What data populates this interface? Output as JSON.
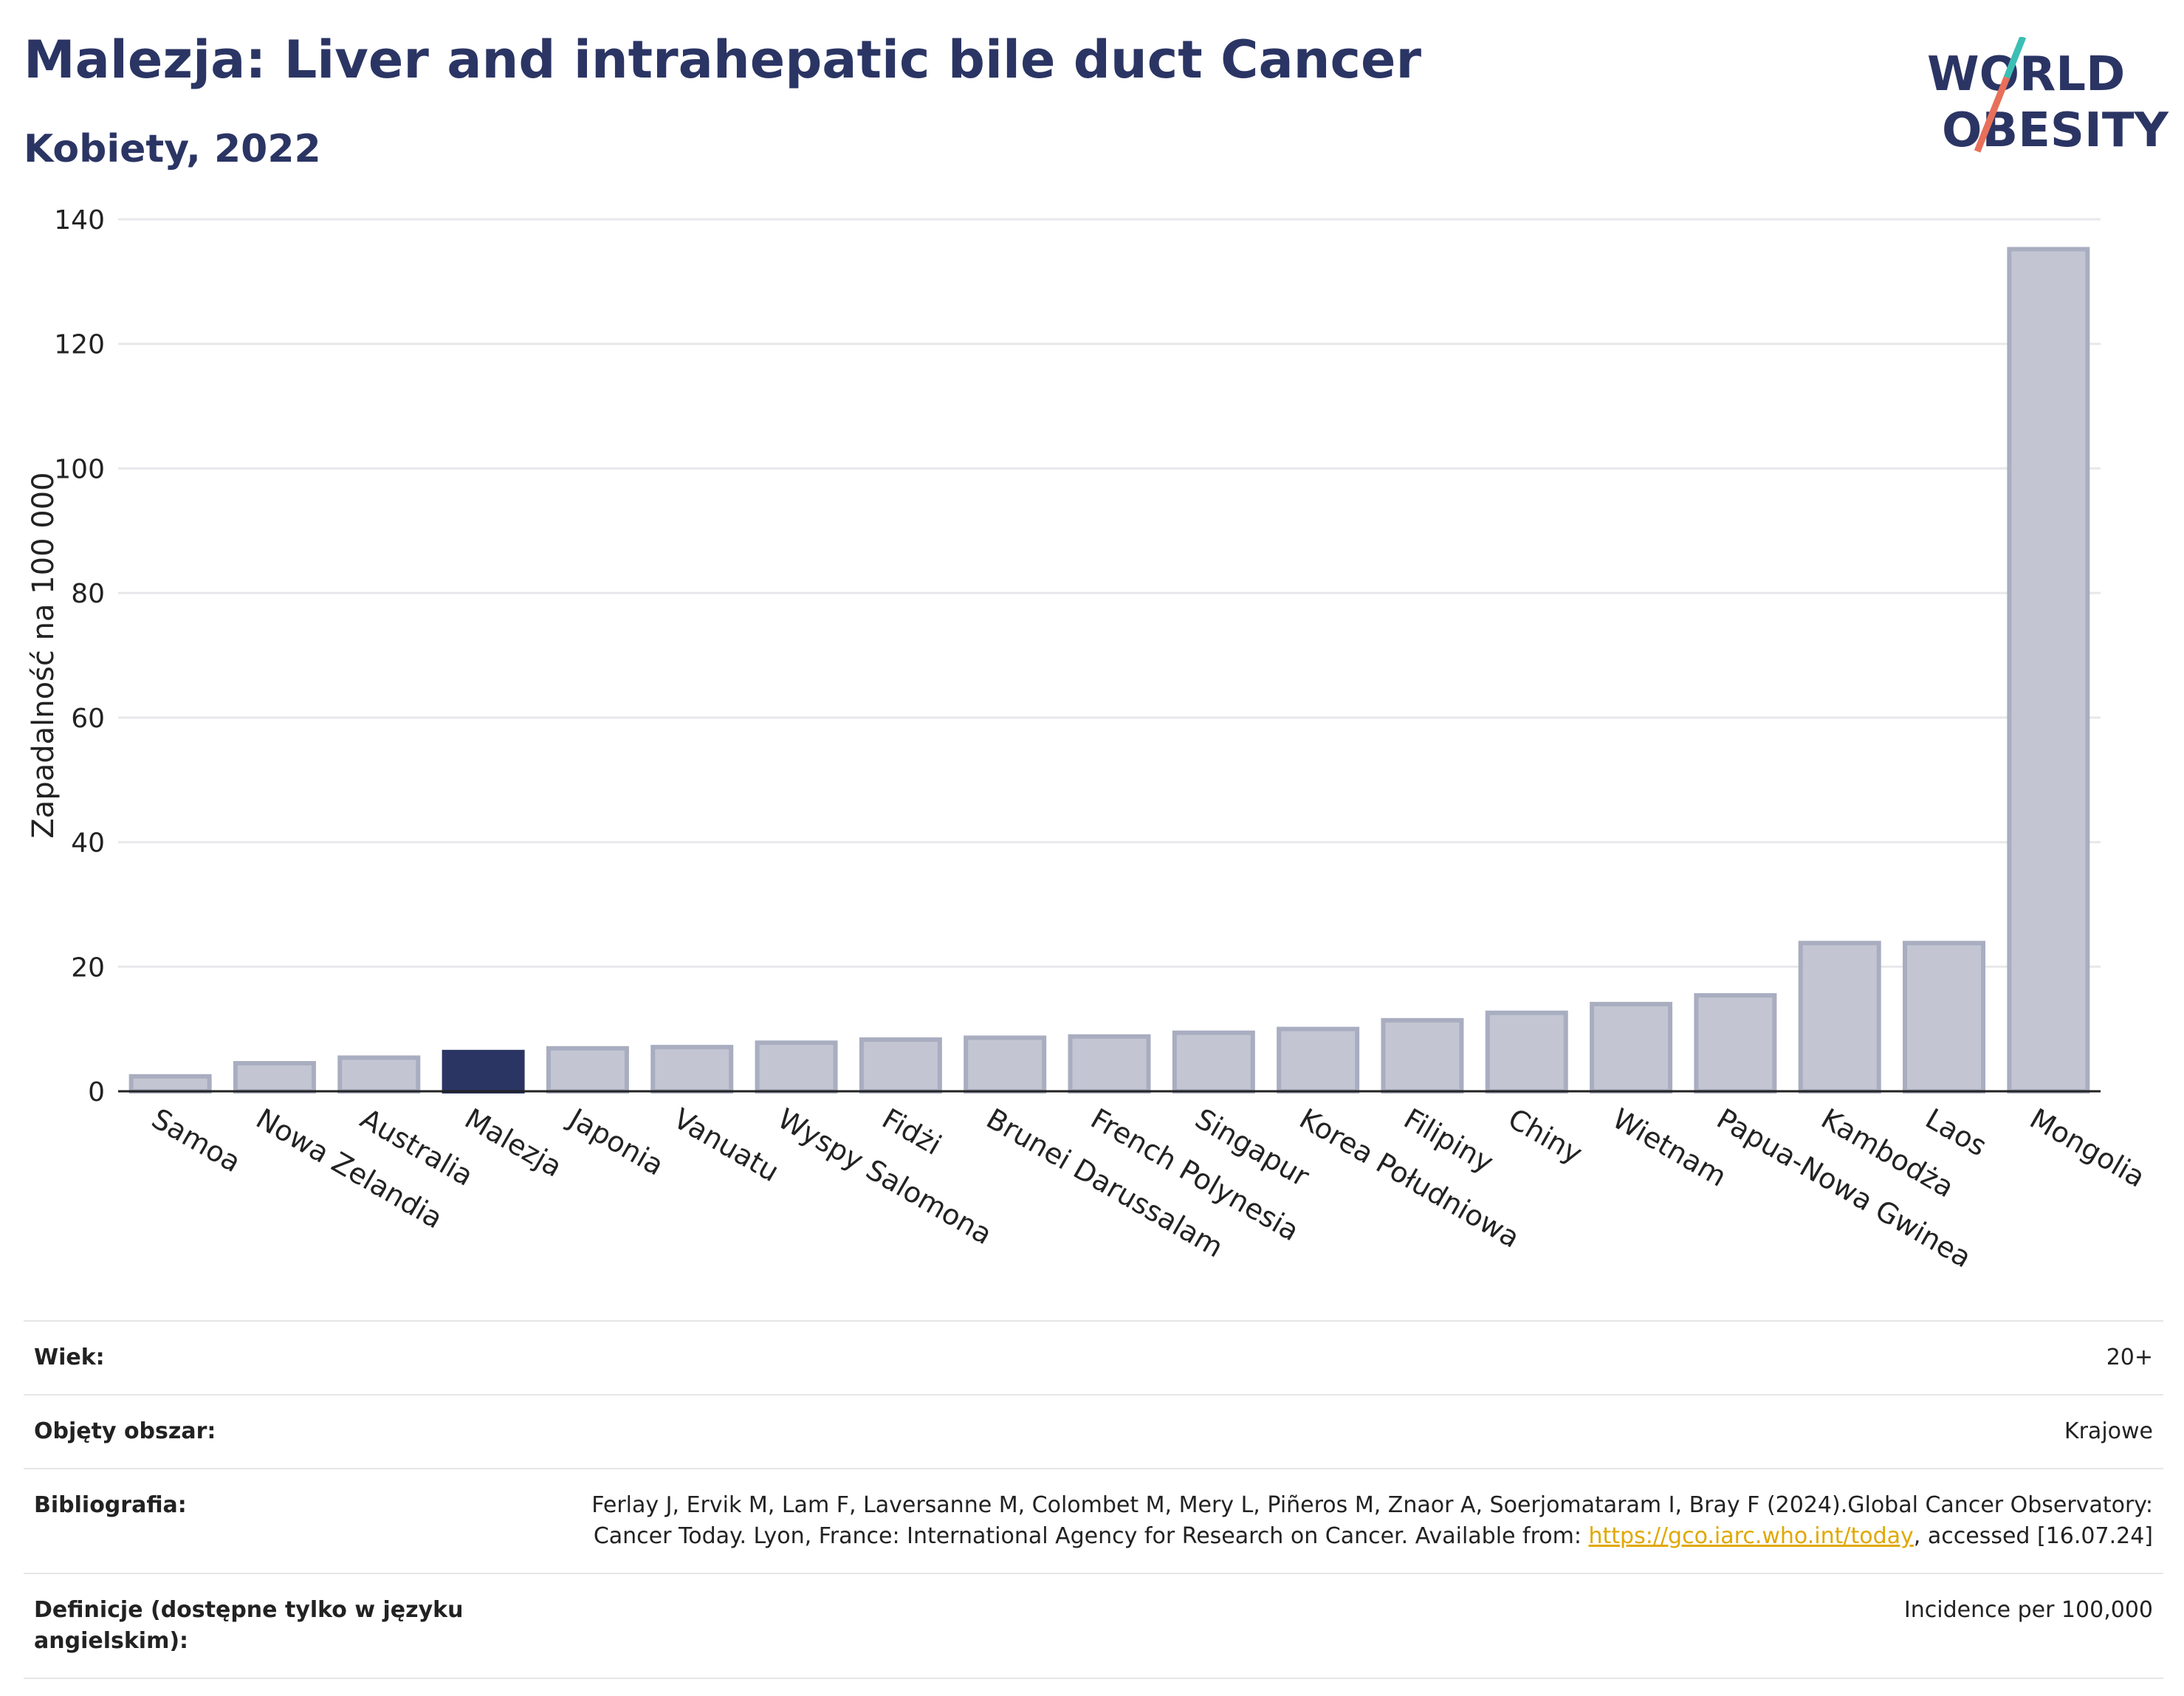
{
  "header": {
    "title": "Malezja: Liver and intrahepatic bile duct Cancer",
    "subtitle": "Kobiety, 2022"
  },
  "logo": {
    "line1": "WORLD",
    "line2": "OBESITY",
    "colors": {
      "text": "#2b3564",
      "slash_teal": "#3bbfb4",
      "slash_red": "#e8705a"
    }
  },
  "chart_data": {
    "type": "bar",
    "ylabel": "Zapadalność na 100 000",
    "ylim": [
      0,
      140
    ],
    "yticks": [
      0,
      20,
      40,
      60,
      80,
      100,
      120,
      140
    ],
    "grid": true,
    "highlight": "Malezja",
    "colors": {
      "bar": "#c3c6d2",
      "bar_border": "#a9adc0",
      "highlight": "#2b3564"
    },
    "categories": [
      "Samoa",
      "Nowa Zelandia",
      "Australia",
      "Malezja",
      "Japonia",
      "Vanuatu",
      "Wyspy Salomona",
      "Fidżi",
      "Brunei Darussalam",
      "French Polynesia",
      "Singapur",
      "Korea Południowa",
      "Filipiny",
      "Chiny",
      "Wietnam",
      "Papua-Nowa Gwinea",
      "Kambodża",
      "Laos",
      "Mongolia"
    ],
    "values": [
      2.4,
      4.5,
      5.4,
      6.3,
      6.9,
      7.1,
      7.8,
      8.3,
      8.6,
      8.8,
      9.4,
      10.0,
      11.4,
      12.6,
      14.0,
      15.4,
      23.8,
      23.8,
      135.2
    ]
  },
  "info": [
    {
      "key": "Wiek:",
      "value": "20+"
    },
    {
      "key": "Objęty obszar:",
      "value": "Krajowe"
    },
    {
      "key": "Bibliografia:",
      "value_before": "Ferlay J, Ervik M, Lam F, Laversanne M, Colombet M, Mery L, Piñeros M, Znaor A, Soerjomataram I, Bray F (2024).Global Cancer Observatory: Cancer Today. Lyon, France: International Agency for Research on Cancer. Available from: ",
      "link": "https://gco.iarc.who.int/today",
      "value_after": ", accessed [16.07.24]"
    },
    {
      "key": "Definicje (dostępne tylko w języku angielskim):",
      "value": "Incidence per 100,000"
    }
  ]
}
